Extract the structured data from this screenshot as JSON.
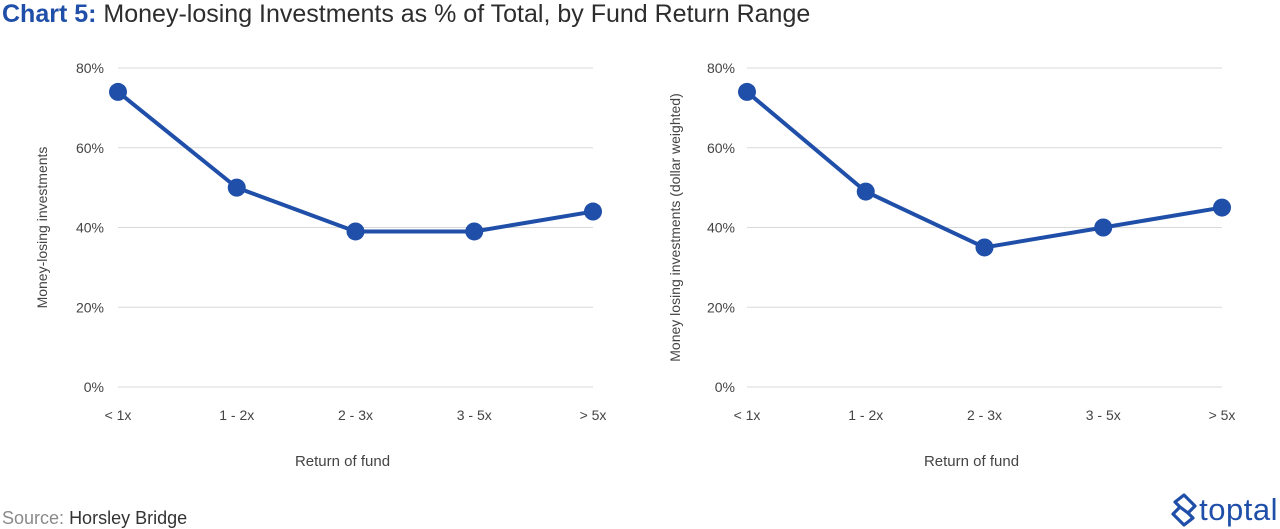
{
  "title": {
    "prefix": "Chart 5:",
    "text": "Money-losing Investments as % of Total, by Fund Return Range"
  },
  "source": {
    "label": "Source:",
    "value": "Horsley Bridge"
  },
  "logo": {
    "text": "toptal",
    "icon": "toptal-logo-icon"
  },
  "colors": {
    "series": "#1f4fa8",
    "grid": "#d9d9d9",
    "text": "#444444",
    "title_accent": "#1f4fa8"
  },
  "chart_data": [
    {
      "type": "line",
      "categories": [
        "< 1x",
        "1 - 2x",
        "2 - 3x",
        "3 - 5x",
        "> 5x"
      ],
      "series": [
        {
          "values": [
            74,
            50,
            39,
            39,
            44
          ]
        }
      ],
      "xlabel": "Return of fund",
      "ylabel": "Money-losing investments",
      "ylim": [
        0,
        80
      ],
      "yticks": [
        0,
        20,
        40,
        60,
        80
      ],
      "ytick_labels": [
        "0%",
        "20%",
        "40%",
        "60%",
        "80%"
      ],
      "grid": true,
      "legend": "none"
    },
    {
      "type": "line",
      "categories": [
        "< 1x",
        "1 - 2x",
        "2 - 3x",
        "3 - 5x",
        "> 5x"
      ],
      "series": [
        {
          "values": [
            74,
            49,
            35,
            40,
            45
          ]
        }
      ],
      "xlabel": "Return of fund",
      "ylabel": "Money losing investments (dollar weighted)",
      "ylim": [
        0,
        80
      ],
      "yticks": [
        0,
        20,
        40,
        60,
        80
      ],
      "ytick_labels": [
        "0%",
        "20%",
        "40%",
        "60%",
        "80%"
      ],
      "grid": true,
      "legend": "none"
    }
  ]
}
